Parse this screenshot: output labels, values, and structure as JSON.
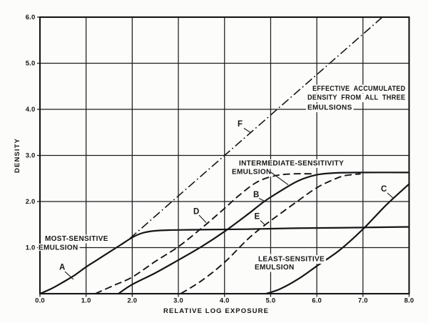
{
  "figure": {
    "background": "#fcfcfb",
    "ink": "#161616",
    "grid_color": "#1c1c1c"
  },
  "chart_data": {
    "type": "line",
    "title": "",
    "xlabel": "RELATIVE LOG EXPOSURE",
    "ylabel": "DENSITY",
    "xlim": [
      0,
      8
    ],
    "ylim": [
      0,
      6
    ],
    "grid": true,
    "x_ticks": [
      {
        "value": 0,
        "label": "0.0"
      },
      {
        "value": 1,
        "label": "1.0"
      },
      {
        "value": 2,
        "label": "2.0"
      },
      {
        "value": 3,
        "label": "3.0"
      },
      {
        "value": 4,
        "label": "4.0"
      },
      {
        "value": 5,
        "label": "5.0"
      },
      {
        "value": 6,
        "label": "6.0"
      },
      {
        "value": 7,
        "label": "7.0"
      },
      {
        "value": 8,
        "label": "8.0"
      }
    ],
    "y_ticks": [
      {
        "value": 1,
        "label": "1.0"
      },
      {
        "value": 2,
        "label": "2.0"
      },
      {
        "value": 3,
        "label": "3.0"
      },
      {
        "value": 4,
        "label": "4.0"
      },
      {
        "value": 5,
        "label": "5.0"
      },
      {
        "value": 6,
        "label": "6.0"
      }
    ],
    "series": [
      {
        "id": "A",
        "name": "most-sensitive emulsion",
        "style": "solid",
        "width": 2.2,
        "points": [
          [
            0,
            0
          ],
          [
            0.25,
            0.11
          ],
          [
            0.5,
            0.25
          ],
          [
            0.75,
            0.4
          ],
          [
            1.0,
            0.58
          ],
          [
            1.25,
            0.74
          ],
          [
            1.5,
            0.9
          ],
          [
            1.75,
            1.06
          ],
          [
            2.0,
            1.22
          ],
          [
            2.2,
            1.31
          ],
          [
            2.45,
            1.36
          ],
          [
            2.8,
            1.38
          ],
          [
            3.5,
            1.39
          ],
          [
            4.5,
            1.4
          ],
          [
            5.5,
            1.42
          ],
          [
            6.5,
            1.43
          ],
          [
            7.25,
            1.44
          ],
          [
            8,
            1.45
          ]
        ]
      },
      {
        "id": "B",
        "name": "intermediate-sensitivity emulsion",
        "style": "solid",
        "width": 2.2,
        "points": [
          [
            1.7,
            0
          ],
          [
            2.0,
            0.2
          ],
          [
            2.5,
            0.45
          ],
          [
            3.0,
            0.73
          ],
          [
            3.5,
            1.02
          ],
          [
            4.0,
            1.35
          ],
          [
            4.5,
            1.72
          ],
          [
            4.86,
            2.0
          ],
          [
            5.2,
            2.22
          ],
          [
            5.6,
            2.45
          ],
          [
            6.0,
            2.58
          ],
          [
            6.4,
            2.62
          ],
          [
            7.0,
            2.63
          ],
          [
            8,
            2.63
          ]
        ]
      },
      {
        "id": "C",
        "name": "least-sensitive emulsion",
        "style": "solid",
        "width": 2.2,
        "points": [
          [
            4.9,
            0
          ],
          [
            5.2,
            0.1
          ],
          [
            5.6,
            0.32
          ],
          [
            6.0,
            0.6
          ],
          [
            6.5,
            0.95
          ],
          [
            7.0,
            1.4
          ],
          [
            7.5,
            1.92
          ],
          [
            8.0,
            2.38
          ]
        ]
      },
      {
        "id": "D",
        "name": "dashed curve D",
        "style": "dashed",
        "width": 1.9,
        "points": [
          [
            1.2,
            0
          ],
          [
            1.6,
            0.18
          ],
          [
            2.0,
            0.36
          ],
          [
            2.5,
            0.7
          ],
          [
            3.0,
            1.02
          ],
          [
            3.5,
            1.42
          ],
          [
            4.0,
            1.85
          ],
          [
            4.3,
            2.12
          ],
          [
            4.7,
            2.42
          ],
          [
            5.1,
            2.56
          ],
          [
            5.5,
            2.6
          ],
          [
            5.95,
            2.6
          ]
        ]
      },
      {
        "id": "E",
        "name": "dashed curve E",
        "style": "dashed",
        "width": 1.9,
        "points": [
          [
            3.05,
            0
          ],
          [
            3.5,
            0.28
          ],
          [
            4.0,
            0.68
          ],
          [
            4.5,
            1.18
          ],
          [
            4.85,
            1.47
          ],
          [
            5.2,
            1.73
          ],
          [
            5.6,
            2.02
          ],
          [
            6.0,
            2.3
          ],
          [
            6.35,
            2.47
          ],
          [
            6.6,
            2.56
          ],
          [
            6.95,
            2.6
          ]
        ]
      },
      {
        "id": "F",
        "name": "effective accumulated density from all three emulsions",
        "style": "dashdot",
        "width": 1.6,
        "straight": true,
        "points": [
          [
            1.95,
            1.2
          ],
          [
            7.42,
            6.0
          ]
        ]
      }
    ],
    "annotations": [
      {
        "id": "most-sensitive",
        "lines": [
          {
            "text": "MOST-SENSITIVE",
            "x": 0.108,
            "y": 1.147
          },
          {
            "text": "EMULSION",
            "x": -0.031,
            "y": 0.953
          }
        ]
      },
      {
        "id": "intermediate-sensitivity",
        "lines": [
          {
            "text": "INTERMEDIATE-SENSITIVITY",
            "x": 4.313,
            "y": 2.783
          },
          {
            "text": "EMULSION",
            "x": 4.158,
            "y": 2.597
          }
        ],
        "pointer": [
          [
            4.993,
            2.643
          ],
          [
            5.38,
            2.364
          ]
        ]
      },
      {
        "id": "least-sensitive",
        "lines": [
          {
            "text": "LEAST-SENSITIVE",
            "x": 4.73,
            "y": 0.705
          },
          {
            "text": "EMULSION",
            "x": 4.653,
            "y": 0.527
          }
        ]
      },
      {
        "id": "effective-accumulated",
        "lines": [
          {
            "text": "EFFECTIVE ACCUMULATED",
            "x": 5.905,
            "y": 4.403
          },
          {
            "text": "DENSITY FROM ALL THREE",
            "x": 5.797,
            "y": 4.209
          },
          {
            "text": "EMULSIONS",
            "x": 5.797,
            "y": 3.992
          }
        ]
      }
    ],
    "curve_labels": [
      {
        "text": "A",
        "x": 0.417,
        "y": 0.519,
        "pointer": [
          [
            0.541,
            0.481
          ],
          [
            0.727,
            0.31
          ]
        ]
      },
      {
        "text": "B",
        "x": 4.622,
        "y": 2.093,
        "pointer": [
          [
            4.746,
            2.07
          ],
          [
            4.87,
            2.008
          ]
        ]
      },
      {
        "text": "C",
        "x": 7.389,
        "y": 2.217,
        "pointer": [
          [
            7.528,
            2.186
          ],
          [
            7.66,
            2.07
          ]
        ]
      },
      {
        "text": "D",
        "x": 3.323,
        "y": 1.729,
        "pointer": [
          [
            3.447,
            1.705
          ],
          [
            3.602,
            1.543
          ]
        ]
      },
      {
        "text": "E",
        "x": 4.645,
        "y": 1.62,
        "pointer": [
          [
            4.769,
            1.597
          ],
          [
            4.87,
            1.496
          ]
        ]
      },
      {
        "text": "F",
        "x": 4.282,
        "y": 3.628,
        "pointer": [
          [
            4.421,
            3.589
          ],
          [
            4.576,
            3.488
          ]
        ]
      }
    ]
  }
}
